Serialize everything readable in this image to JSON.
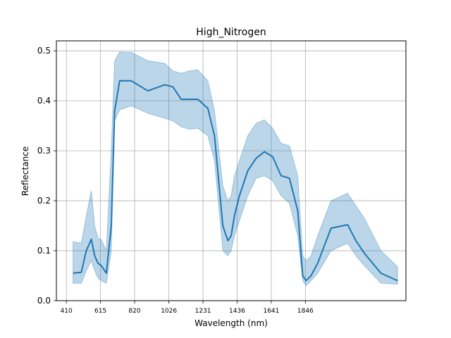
{
  "chart_data": {
    "type": "line",
    "title": "High_Nitrogen",
    "xlabel": "Wavelength (nm)",
    "ylabel": "Reflectance",
    "xlim": [
      350,
      2450
    ],
    "ylim": [
      0.0,
      0.52
    ],
    "grid": true,
    "xticks": [
      410,
      615,
      820,
      1026,
      1231,
      1436,
      1641,
      1846
    ],
    "yticks": [
      0.0,
      0.1,
      0.2,
      0.3,
      0.4,
      0.5
    ],
    "ytick_labels": [
      "0.0",
      "0.1",
      "0.2",
      "0.3",
      "0.4",
      "0.5"
    ],
    "line_color": "#1f77b4",
    "band_color": "#1f77b4",
    "series": [
      {
        "x": [
          450,
          500,
          530,
          560,
          580,
          600,
          620,
          650,
          680,
          700,
          730,
          760,
          800,
          900,
          1000,
          1050,
          1100,
          1150,
          1200,
          1260,
          1300,
          1350,
          1380,
          1400,
          1420,
          1450,
          1500,
          1550,
          1600,
          1650,
          1700,
          1750,
          1800,
          1830,
          1850,
          1880,
          1920,
          2000,
          2100,
          2150,
          2200,
          2300,
          2400
        ],
        "mean": [
          0.055,
          0.057,
          0.1,
          0.123,
          0.09,
          0.075,
          0.07,
          0.055,
          0.15,
          0.38,
          0.44,
          0.44,
          0.44,
          0.42,
          0.432,
          0.428,
          0.403,
          0.403,
          0.403,
          0.385,
          0.33,
          0.15,
          0.12,
          0.13,
          0.17,
          0.21,
          0.26,
          0.285,
          0.298,
          0.288,
          0.25,
          0.245,
          0.18,
          0.05,
          0.04,
          0.05,
          0.075,
          0.145,
          0.152,
          0.12,
          0.095,
          0.055,
          0.04
        ],
        "upper": [
          0.118,
          0.115,
          0.17,
          0.22,
          0.15,
          0.125,
          0.122,
          0.1,
          0.3,
          0.48,
          0.498,
          0.497,
          0.497,
          0.48,
          0.475,
          0.46,
          0.455,
          0.46,
          0.462,
          0.44,
          0.38,
          0.23,
          0.2,
          0.21,
          0.25,
          0.28,
          0.33,
          0.355,
          0.362,
          0.345,
          0.315,
          0.31,
          0.25,
          0.09,
          0.08,
          0.09,
          0.13,
          0.2,
          0.215,
          0.19,
          0.165,
          0.1,
          0.068
        ],
        "lower": [
          0.035,
          0.035,
          0.06,
          0.08,
          0.06,
          0.045,
          0.04,
          0.035,
          0.1,
          0.36,
          0.382,
          0.385,
          0.39,
          0.375,
          0.365,
          0.36,
          0.348,
          0.343,
          0.345,
          0.33,
          0.28,
          0.1,
          0.09,
          0.1,
          0.13,
          0.16,
          0.21,
          0.245,
          0.25,
          0.24,
          0.21,
          0.195,
          0.13,
          0.04,
          0.03,
          0.04,
          0.055,
          0.1,
          0.115,
          0.09,
          0.07,
          0.035,
          0.033
        ]
      }
    ]
  }
}
